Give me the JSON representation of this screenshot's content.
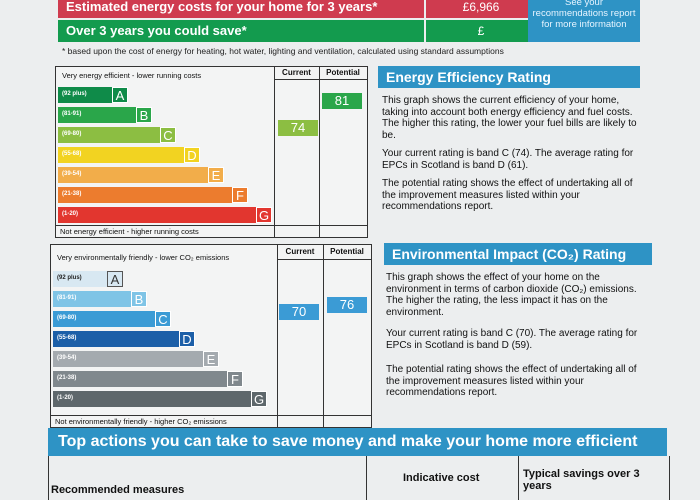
{
  "top_table": {
    "row1_label": "Estimated energy costs for your home for 3 years*",
    "row1_value": "£6,966",
    "row2_label": "Over 3 years you could save*",
    "row2_value": "£",
    "side_link": "See your recommendations report for more information",
    "footnote": "* based upon the cost of energy for heating, hot water, lighting and ventilation, calculated using standard assumptions"
  },
  "energy_chart": {
    "top_caption": "Very energy efficient - lower running costs",
    "bottom_caption": "Not energy efficient - higher running costs",
    "col_current": "Current",
    "col_potential": "Potential",
    "bands": [
      {
        "range": "(92 plus)",
        "letter": "A",
        "color": "#0f8b49"
      },
      {
        "range": "(81-91)",
        "letter": "B",
        "color": "#2aa64a"
      },
      {
        "range": "(69-80)",
        "letter": "C",
        "color": "#8cbe42"
      },
      {
        "range": "(55-68)",
        "letter": "D",
        "color": "#f2d321"
      },
      {
        "range": "(39-54)",
        "letter": "E",
        "color": "#f2ad4a"
      },
      {
        "range": "(21-38)",
        "letter": "F",
        "color": "#ec7c2e"
      },
      {
        "range": "(1-20)",
        "letter": "G",
        "color": "#e2362f"
      }
    ],
    "current": "74",
    "potential": "81"
  },
  "energy_text": {
    "title": "Energy Efficiency Rating",
    "p1": "This graph shows the current efficiency of your home, taking into account both energy efficiency and fuel costs. The higher this rating, the lower your fuel bills are likely to be.",
    "p2": "Your current rating is band C (74). The average rating for EPCs in Scotland is band D (61).",
    "p3": "The potential rating shows the effect of undertaking all of the improvement measures listed within your recommendations report."
  },
  "env_chart": {
    "top_caption": "Very environmentally friendly - lower CO₂ emissions",
    "bottom_caption": "Not environmentally friendly - higher CO₂ emissions",
    "col_current": "Current",
    "col_potential": "Potential",
    "bands": [
      {
        "range": "(92 plus)",
        "letter": "A",
        "color": "#d8e8f2"
      },
      {
        "range": "(81-91)",
        "letter": "B",
        "color": "#7fc4e6"
      },
      {
        "range": "(69-80)",
        "letter": "C",
        "color": "#3b9bd5"
      },
      {
        "range": "(55-68)",
        "letter": "D",
        "color": "#1c5fa8"
      },
      {
        "range": "(39-54)",
        "letter": "E",
        "color": "#a4aaaf"
      },
      {
        "range": "(21-38)",
        "letter": "F",
        "color": "#80888d"
      },
      {
        "range": "(1-20)",
        "letter": "G",
        "color": "#5e676b"
      }
    ],
    "current": "70",
    "potential": "76"
  },
  "env_text": {
    "title": "Environmental Impact (CO₂) Rating",
    "p1": "This graph shows the effect of your home on the environment in terms of carbon dioxide (CO₂) emissions. The higher the rating, the less impact it has on the environment.",
    "p2": "Your current rating is band C (70). The average rating for EPCs in Scotland is band D (59).",
    "p3": "The potential rating shows the effect of undertaking all of the improvement measures listed within your recommendations report."
  },
  "actions": {
    "title": "Top actions you can take to save money and make your home more efficient",
    "col_measures": "Recommended measures",
    "col_cost": "Indicative cost",
    "col_savings": "Typical savings over 3 years"
  },
  "colors": {
    "accent": "#2e93c5",
    "cost_row1": "#cf3b4f",
    "cost_row2": "#139b4e"
  }
}
